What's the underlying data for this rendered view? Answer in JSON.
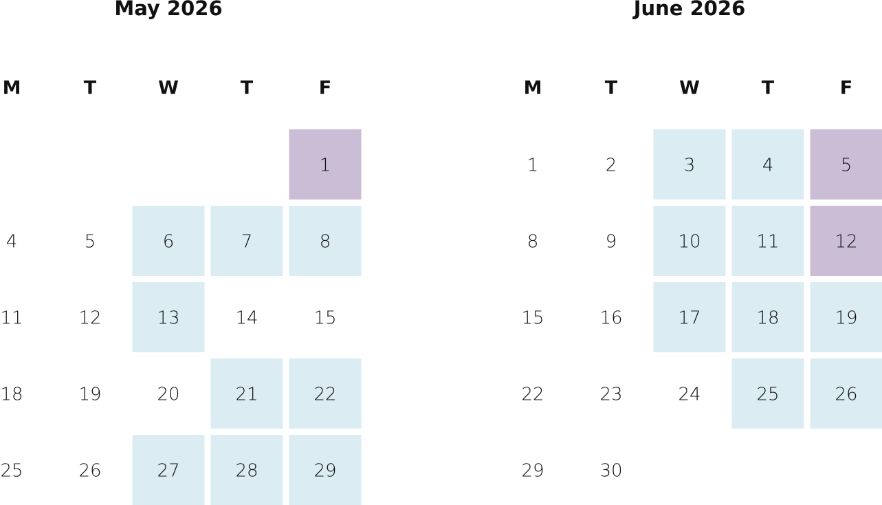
{
  "months": [
    {
      "title": "May 2026",
      "weekdays": [
        "M",
        "T",
        "W",
        "T",
        "F"
      ],
      "weeks": [
        [
          null,
          null,
          null,
          null,
          {
            "day": "1",
            "fill": "#cbbdd6"
          }
        ],
        [
          {
            "day": "4"
          },
          {
            "day": "5"
          },
          {
            "day": "6",
            "fill": "#dbedf3"
          },
          {
            "day": "7",
            "fill": "#dbedf3"
          },
          {
            "day": "8",
            "fill": "#dbedf3"
          }
        ],
        [
          {
            "day": "11"
          },
          {
            "day": "12"
          },
          {
            "day": "13",
            "fill": "#dbedf3"
          },
          {
            "day": "14"
          },
          {
            "day": "15"
          }
        ],
        [
          {
            "day": "18"
          },
          {
            "day": "19"
          },
          {
            "day": "20"
          },
          {
            "day": "21",
            "fill": "#dbedf3"
          },
          {
            "day": "22",
            "fill": "#dbedf3"
          }
        ],
        [
          {
            "day": "25"
          },
          {
            "day": "26"
          },
          {
            "day": "27",
            "fill": "#dbedf3"
          },
          {
            "day": "28",
            "fill": "#dbedf3"
          },
          {
            "day": "29",
            "fill": "#dbedf3"
          }
        ]
      ]
    },
    {
      "title": "June 2026",
      "weekdays": [
        "M",
        "T",
        "W",
        "T",
        "F"
      ],
      "weeks": [
        [
          {
            "day": "1"
          },
          {
            "day": "2"
          },
          {
            "day": "3",
            "fill": "#dbedf3"
          },
          {
            "day": "4",
            "fill": "#dbedf3"
          },
          {
            "day": "5",
            "fill": "#cbbdd6"
          }
        ],
        [
          {
            "day": "8"
          },
          {
            "day": "9"
          },
          {
            "day": "10",
            "fill": "#dbedf3"
          },
          {
            "day": "11",
            "fill": "#dbedf3"
          },
          {
            "day": "12",
            "fill": "#cbbdd6"
          }
        ],
        [
          {
            "day": "15"
          },
          {
            "day": "16"
          },
          {
            "day": "17",
            "fill": "#dbedf3"
          },
          {
            "day": "18",
            "fill": "#dbedf3"
          },
          {
            "day": "19",
            "fill": "#dbedf3"
          }
        ],
        [
          {
            "day": "22"
          },
          {
            "day": "23"
          },
          {
            "day": "24"
          },
          {
            "day": "25",
            "fill": "#dbedf3"
          },
          {
            "day": "26",
            "fill": "#dbedf3"
          }
        ],
        [
          {
            "day": "29"
          },
          {
            "day": "30"
          },
          null,
          null,
          null
        ]
      ]
    }
  ]
}
